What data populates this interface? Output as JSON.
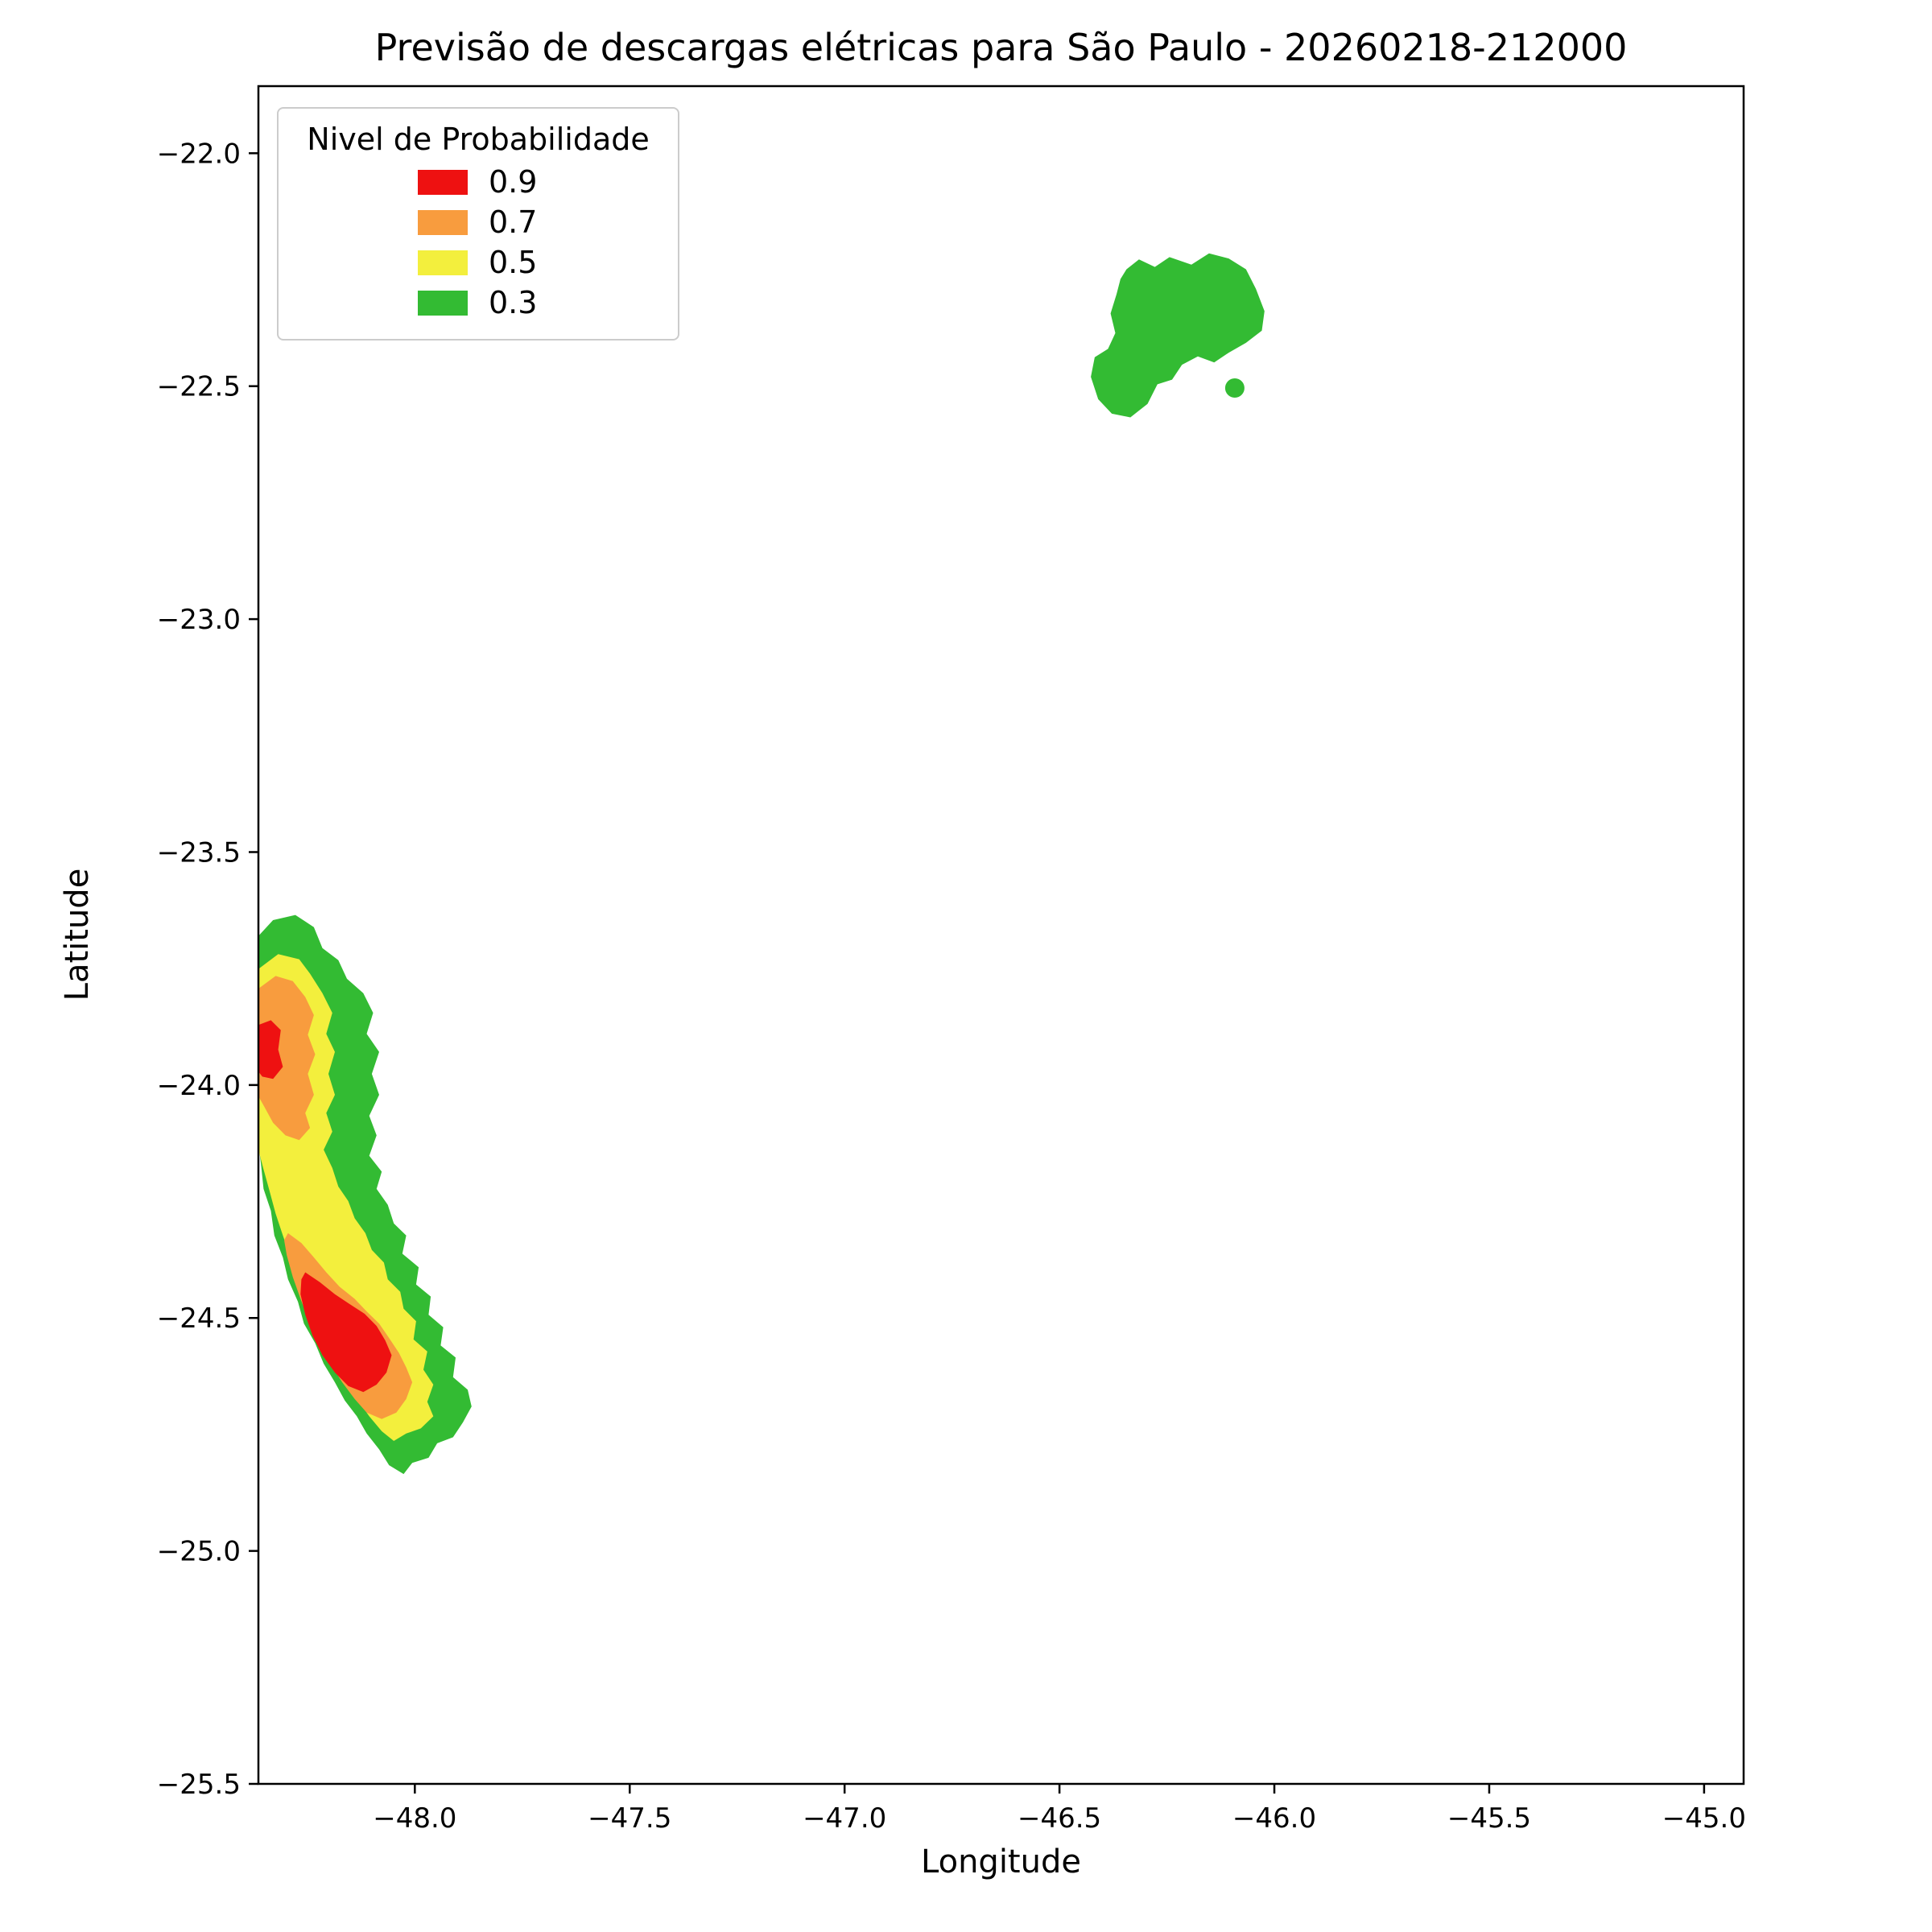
{
  "chart_data": {
    "type": "filled-contour-map",
    "title": "Previsão de descargas elétricas para São Paulo - 20260218-212000",
    "xlabel": "Longitude",
    "ylabel": "Latitude",
    "xlim": [
      -48.364,
      -44.908
    ],
    "ylim": [
      -25.5,
      -21.856
    ],
    "grid": false,
    "background": "#ffffff",
    "xticks": {
      "values": [
        -48.0,
        -47.5,
        -47.0,
        -46.5,
        -46.0,
        -45.5,
        -45.0
      ],
      "labels": [
        "−48.0",
        "−47.5",
        "−47.0",
        "−46.5",
        "−46.0",
        "−45.5",
        "−45.0"
      ]
    },
    "yticks": {
      "values": [
        -22.0,
        -22.5,
        -23.0,
        -23.5,
        -24.0,
        -24.5,
        -25.0,
        -25.5
      ],
      "labels": [
        "−22.0",
        "−22.5",
        "−23.0",
        "−23.5",
        "−24.0",
        "−24.5",
        "−25.0",
        "−25.5"
      ]
    },
    "legend": {
      "title": "Nivel de Probabilidade",
      "position": "upper left",
      "entries": [
        {
          "label": "0.9",
          "color": "#ee1111"
        },
        {
          "label": "0.7",
          "color": "#f89c3e"
        },
        {
          "label": "0.5",
          "color": "#f3ef3d"
        },
        {
          "label": "0.3",
          "color": "#33bb33"
        }
      ]
    },
    "levels": [
      0.3,
      0.5,
      0.7,
      0.9
    ],
    "regions": [
      {
        "name": "southwest-band-p03",
        "level": 0.3,
        "color": "#33bb33",
        "polygon": [
          [
            -48.364,
            -23.68
          ],
          [
            -48.33,
            -23.646
          ],
          [
            -48.278,
            -23.635
          ],
          [
            -48.235,
            -23.661
          ],
          [
            -48.215,
            -23.706
          ],
          [
            -48.178,
            -23.732
          ],
          [
            -48.158,
            -23.772
          ],
          [
            -48.12,
            -23.803
          ],
          [
            -48.097,
            -23.845
          ],
          [
            -48.112,
            -23.89
          ],
          [
            -48.083,
            -23.929
          ],
          [
            -48.1,
            -23.976
          ],
          [
            -48.083,
            -24.021
          ],
          [
            -48.106,
            -24.066
          ],
          [
            -48.089,
            -24.108
          ],
          [
            -48.106,
            -24.152
          ],
          [
            -48.077,
            -24.186
          ],
          [
            -48.089,
            -24.223
          ],
          [
            -48.063,
            -24.257
          ],
          [
            -48.049,
            -24.297
          ],
          [
            -48.02,
            -24.323
          ],
          [
            -48.029,
            -24.362
          ],
          [
            -47.991,
            -24.391
          ],
          [
            -47.997,
            -24.428
          ],
          [
            -47.963,
            -24.454
          ],
          [
            -47.968,
            -24.493
          ],
          [
            -47.934,
            -24.52
          ],
          [
            -47.94,
            -24.559
          ],
          [
            -47.905,
            -24.585
          ],
          [
            -47.911,
            -24.627
          ],
          [
            -47.877,
            -24.654
          ],
          [
            -47.868,
            -24.69
          ],
          [
            -47.888,
            -24.724
          ],
          [
            -47.911,
            -24.756
          ],
          [
            -47.948,
            -24.769
          ],
          [
            -47.968,
            -24.8
          ],
          [
            -48.006,
            -24.811
          ],
          [
            -48.026,
            -24.835
          ],
          [
            -48.06,
            -24.816
          ],
          [
            -48.083,
            -24.782
          ],
          [
            -48.112,
            -24.748
          ],
          [
            -48.135,
            -24.711
          ],
          [
            -48.163,
            -24.677
          ],
          [
            -48.186,
            -24.638
          ],
          [
            -48.212,
            -24.598
          ],
          [
            -48.232,
            -24.554
          ],
          [
            -48.258,
            -24.512
          ],
          [
            -48.272,
            -24.465
          ],
          [
            -48.295,
            -24.417
          ],
          [
            -48.307,
            -24.37
          ],
          [
            -48.327,
            -24.323
          ],
          [
            -48.335,
            -24.27
          ],
          [
            -48.352,
            -24.223
          ],
          [
            -48.358,
            -24.17
          ],
          [
            -48.364,
            -24.126
          ]
        ]
      },
      {
        "name": "southwest-band-p05",
        "level": 0.5,
        "color": "#f3ef3d",
        "polygon": [
          [
            -48.364,
            -23.751
          ],
          [
            -48.318,
            -23.719
          ],
          [
            -48.269,
            -23.73
          ],
          [
            -48.244,
            -23.761
          ],
          [
            -48.215,
            -23.803
          ],
          [
            -48.192,
            -23.845
          ],
          [
            -48.206,
            -23.89
          ],
          [
            -48.186,
            -23.929
          ],
          [
            -48.201,
            -23.976
          ],
          [
            -48.186,
            -24.021
          ],
          [
            -48.206,
            -24.06
          ],
          [
            -48.192,
            -24.1
          ],
          [
            -48.212,
            -24.139
          ],
          [
            -48.192,
            -24.178
          ],
          [
            -48.178,
            -24.218
          ],
          [
            -48.155,
            -24.249
          ],
          [
            -48.14,
            -24.286
          ],
          [
            -48.115,
            -24.318
          ],
          [
            -48.1,
            -24.354
          ],
          [
            -48.072,
            -24.381
          ],
          [
            -48.063,
            -24.417
          ],
          [
            -48.034,
            -24.444
          ],
          [
            -48.026,
            -24.48
          ],
          [
            -47.997,
            -24.507
          ],
          [
            -48.003,
            -24.546
          ],
          [
            -47.971,
            -24.572
          ],
          [
            -47.98,
            -24.611
          ],
          [
            -47.957,
            -24.643
          ],
          [
            -47.971,
            -24.68
          ],
          [
            -47.957,
            -24.711
          ],
          [
            -47.986,
            -24.737
          ],
          [
            -48.02,
            -24.748
          ],
          [
            -48.049,
            -24.764
          ],
          [
            -48.077,
            -24.743
          ],
          [
            -48.106,
            -24.711
          ],
          [
            -48.132,
            -24.677
          ],
          [
            -48.158,
            -24.638
          ],
          [
            -48.183,
            -24.598
          ],
          [
            -48.209,
            -24.554
          ],
          [
            -48.232,
            -24.512
          ],
          [
            -48.252,
            -24.465
          ],
          [
            -48.272,
            -24.417
          ],
          [
            -48.289,
            -24.37
          ],
          [
            -48.307,
            -24.323
          ],
          [
            -48.324,
            -24.276
          ],
          [
            -48.338,
            -24.228
          ],
          [
            -48.352,
            -24.181
          ],
          [
            -48.364,
            -24.139
          ]
        ]
      },
      {
        "name": "southwest-upper-p07",
        "level": 0.7,
        "color": "#f89c3e",
        "polygon": [
          [
            -48.364,
            -23.793
          ],
          [
            -48.324,
            -23.766
          ],
          [
            -48.284,
            -23.777
          ],
          [
            -48.255,
            -23.811
          ],
          [
            -48.235,
            -23.85
          ],
          [
            -48.249,
            -23.892
          ],
          [
            -48.232,
            -23.934
          ],
          [
            -48.249,
            -23.976
          ],
          [
            -48.235,
            -24.021
          ],
          [
            -48.255,
            -24.06
          ],
          [
            -48.244,
            -24.092
          ],
          [
            -48.269,
            -24.118
          ],
          [
            -48.301,
            -24.108
          ],
          [
            -48.33,
            -24.081
          ],
          [
            -48.35,
            -24.047
          ],
          [
            -48.364,
            -24.024
          ]
        ]
      },
      {
        "name": "southwest-lower-p07",
        "level": 0.7,
        "color": "#f89c3e",
        "polygon": [
          [
            -48.295,
            -24.318
          ],
          [
            -48.264,
            -24.339
          ],
          [
            -48.235,
            -24.37
          ],
          [
            -48.206,
            -24.402
          ],
          [
            -48.175,
            -24.433
          ],
          [
            -48.14,
            -24.459
          ],
          [
            -48.112,
            -24.486
          ],
          [
            -48.083,
            -24.512
          ],
          [
            -48.06,
            -24.543
          ],
          [
            -48.037,
            -24.575
          ],
          [
            -48.02,
            -24.606
          ],
          [
            -48.006,
            -24.638
          ],
          [
            -48.02,
            -24.674
          ],
          [
            -48.043,
            -24.703
          ],
          [
            -48.077,
            -24.717
          ],
          [
            -48.112,
            -24.703
          ],
          [
            -48.14,
            -24.674
          ],
          [
            -48.169,
            -24.638
          ],
          [
            -48.198,
            -24.596
          ],
          [
            -48.223,
            -24.554
          ],
          [
            -48.246,
            -24.507
          ],
          [
            -48.266,
            -24.459
          ],
          [
            -48.284,
            -24.412
          ],
          [
            -48.298,
            -24.365
          ],
          [
            -48.304,
            -24.333
          ]
        ]
      },
      {
        "name": "southwest-upper-p09",
        "level": 0.9,
        "color": "#ee1111",
        "polygon": [
          [
            -48.364,
            -23.871
          ],
          [
            -48.335,
            -23.861
          ],
          [
            -48.312,
            -23.882
          ],
          [
            -48.318,
            -23.924
          ],
          [
            -48.307,
            -23.961
          ],
          [
            -48.33,
            -23.987
          ],
          [
            -48.355,
            -23.982
          ],
          [
            -48.364,
            -23.971
          ]
        ]
      },
      {
        "name": "southwest-lower-p09",
        "level": 0.9,
        "color": "#ee1111",
        "polygon": [
          [
            -48.255,
            -24.402
          ],
          [
            -48.221,
            -24.423
          ],
          [
            -48.186,
            -24.449
          ],
          [
            -48.152,
            -24.47
          ],
          [
            -48.117,
            -24.491
          ],
          [
            -48.089,
            -24.517
          ],
          [
            -48.069,
            -24.548
          ],
          [
            -48.054,
            -24.58
          ],
          [
            -48.066,
            -24.617
          ],
          [
            -48.089,
            -24.643
          ],
          [
            -48.12,
            -24.659
          ],
          [
            -48.155,
            -24.646
          ],
          [
            -48.186,
            -24.617
          ],
          [
            -48.215,
            -24.58
          ],
          [
            -48.238,
            -24.538
          ],
          [
            -48.255,
            -24.493
          ],
          [
            -48.266,
            -24.449
          ],
          [
            -48.264,
            -24.417
          ]
        ]
      },
      {
        "name": "northeast-cell-p03",
        "level": 0.3,
        "color": "#33bb33",
        "polygon": [
          [
            -46.344,
            -22.249
          ],
          [
            -46.315,
            -22.228
          ],
          [
            -46.278,
            -22.244
          ],
          [
            -46.244,
            -22.223
          ],
          [
            -46.193,
            -22.239
          ],
          [
            -46.152,
            -22.215
          ],
          [
            -46.106,
            -22.226
          ],
          [
            -46.066,
            -22.249
          ],
          [
            -46.043,
            -22.291
          ],
          [
            -46.023,
            -22.339
          ],
          [
            -46.029,
            -22.381
          ],
          [
            -46.066,
            -22.407
          ],
          [
            -46.106,
            -22.428
          ],
          [
            -46.14,
            -22.449
          ],
          [
            -46.178,
            -22.436
          ],
          [
            -46.215,
            -22.454
          ],
          [
            -46.238,
            -22.486
          ],
          [
            -46.272,
            -22.496
          ],
          [
            -46.295,
            -22.538
          ],
          [
            -46.335,
            -22.567
          ],
          [
            -46.378,
            -22.559
          ],
          [
            -46.41,
            -22.528
          ],
          [
            -46.427,
            -22.48
          ],
          [
            -46.418,
            -22.438
          ],
          [
            -46.387,
            -22.42
          ],
          [
            -46.37,
            -22.386
          ],
          [
            -46.381,
            -22.344
          ],
          [
            -46.367,
            -22.302
          ],
          [
            -46.358,
            -22.27
          ]
        ]
      }
    ],
    "markers": [
      {
        "name": "isolated-cell-p03",
        "level": 0.3,
        "color": "#33bb33",
        "lon": -46.092,
        "lat": -22.504,
        "radius_px": 12
      }
    ]
  }
}
